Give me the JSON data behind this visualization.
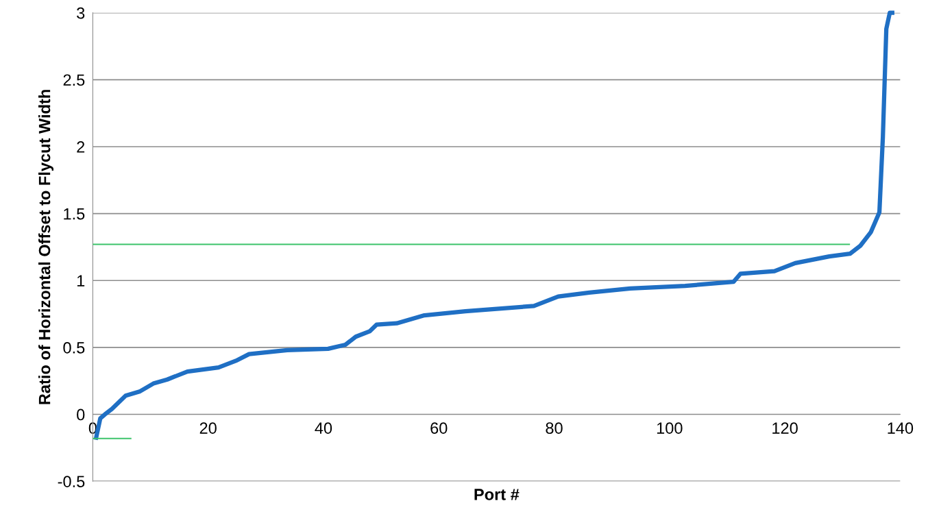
{
  "chart_data": {
    "type": "line",
    "xlabel": "Port #",
    "ylabel": "Ratio of Horizontal Offset to Flycut Width",
    "xlim": [
      0,
      140
    ],
    "xticks": [
      0,
      20,
      40,
      60,
      80,
      100,
      120,
      140
    ],
    "ylim": [
      -0.5,
      3
    ],
    "yticks": [
      -0.5,
      0,
      0.5,
      1,
      1.5,
      2,
      2.5,
      3
    ],
    "grid": "y",
    "marker": "none",
    "line_style": "solid",
    "series": [
      {
        "color": "#1f6fc4",
        "x": [
          0.5,
          1.3,
          2.1,
          3.3,
          5.7,
          8.1,
          10.5,
          12.9,
          16.4,
          21.8,
          24.8,
          27.1,
          33.7,
          40.8,
          43.8,
          45.6,
          48,
          49.2,
          52.7,
          57.5,
          64.6,
          76.5,
          80.7,
          86.1,
          93.2,
          102.7,
          111.1,
          112.3,
          118.2,
          121.8,
          127.7,
          131.3,
          133.1,
          134.9,
          136.4,
          137,
          137.6,
          138.2,
          139
        ],
        "values": [
          -0.19,
          -0.03,
          0,
          0.04,
          0.14,
          0.17,
          0.23,
          0.26,
          0.32,
          0.35,
          0.4,
          0.45,
          0.48,
          0.49,
          0.52,
          0.58,
          0.62,
          0.67,
          0.68,
          0.74,
          0.77,
          0.81,
          0.88,
          0.91,
          0.94,
          0.96,
          0.99,
          1.05,
          1.07,
          1.13,
          1.18,
          1.2,
          1.26,
          1.36,
          1.51,
          2.07,
          2.88,
          3.0,
          3.0
        ]
      },
      {
        "color": "#3cc36a",
        "x": [
          0,
          131.3
        ],
        "values": [
          1.27,
          1.27
        ]
      },
      {
        "color": "#3cc36a",
        "x": [
          0,
          6.7
        ],
        "values": [
          -0.18,
          -0.18
        ]
      }
    ]
  }
}
